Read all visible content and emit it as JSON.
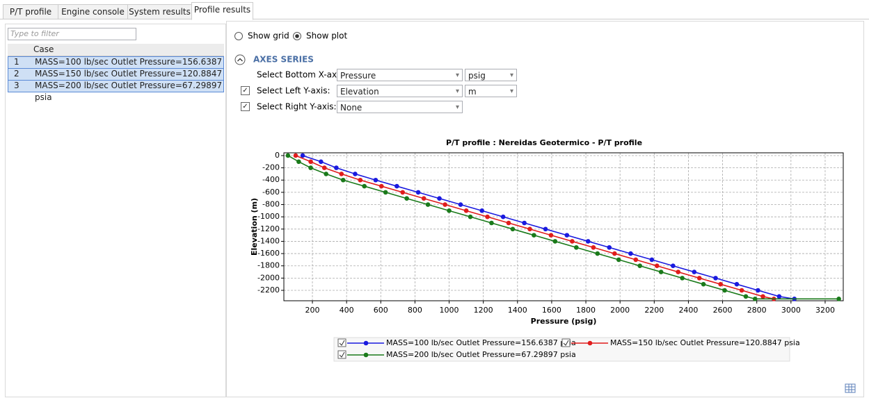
{
  "tabs": [
    "P/T profile",
    "Engine console",
    "System results",
    "Profile results"
  ],
  "filter_placeholder": "Type to filter",
  "case_table": {
    "header": "Case",
    "rows": [
      [
        1,
        "MASS=100 lb/sec Outlet Pressure=156.6387 psia"
      ],
      [
        2,
        "MASS=150 lb/sec Outlet Pressure=120.8847 psia"
      ],
      [
        3,
        "MASS=200 lb/sec Outlet Pressure=67.29897 psia"
      ]
    ]
  },
  "view_options": [
    "Show grid",
    "Show plot"
  ],
  "axes_series": {
    "title": "AXES SERIES",
    "rows": [
      {
        "label": "Select Bottom X-axis:",
        "value": "Pressure",
        "unit": "psig"
      },
      {
        "label": "Select Left Y-axis:",
        "value": "Elevation",
        "unit": "m"
      },
      {
        "label": "Select Right Y-axis:",
        "value": "None"
      }
    ]
  },
  "chart_data": {
    "type": "line",
    "title": "P/T profile : Nereidas Geotermico - P/T profile",
    "x_label": "Pressure (psig)",
    "y_label": "Elevation (m)",
    "xlim": [
      33,
      3306
    ],
    "ylim": [
      -2370,
      45
    ],
    "xticks": [
      200,
      400,
      600,
      800,
      1000,
      1200,
      1400,
      1600,
      1800,
      2000,
      2200,
      2400,
      2600,
      2800,
      3000,
      3200
    ],
    "yticks": [
      0,
      -200,
      -400,
      -600,
      -800,
      -1000,
      -1200,
      -1400,
      -1600,
      -1800,
      -2000,
      -2200
    ],
    "grid": true,
    "series": [
      {
        "name": "MASS=100 lb/sec Outlet Pressure=156.6387 psia",
        "color": "#1a1adf",
        "x": [
          143,
          250,
          340,
          450,
          570,
          694,
          819,
          943,
          1067,
          1192,
          1316,
          1440,
          1564,
          1689,
          1813,
          1937,
          2062,
          2186,
          2310,
          2434,
          2559,
          2683,
          2807,
          2931,
          3020
        ],
        "values": [
          0,
          -100,
          -200,
          -300,
          -400,
          -500,
          -600,
          -700,
          -800,
          -900,
          -1000,
          -1100,
          -1200,
          -1300,
          -1400,
          -1500,
          -1600,
          -1700,
          -1800,
          -1900,
          -2000,
          -2100,
          -2200,
          -2300,
          -2340
        ]
      },
      {
        "name": "MASS=150 lb/sec Outlet Pressure=120.8847 psia",
        "color": "#e01c1c",
        "x": [
          102,
          190,
          270,
          370,
          480,
          604,
          728,
          852,
          976,
          1100,
          1224,
          1348,
          1472,
          1596,
          1720,
          1844,
          1968,
          2092,
          2216,
          2340,
          2464,
          2588,
          2712,
          2836,
          2900
        ],
        "values": [
          0,
          -100,
          -200,
          -300,
          -400,
          -500,
          -600,
          -700,
          -800,
          -900,
          -1000,
          -1100,
          -1200,
          -1300,
          -1400,
          -1500,
          -1600,
          -1700,
          -1800,
          -1900,
          -2000,
          -2100,
          -2200,
          -2300,
          -2340
        ]
      },
      {
        "name": "MASS=200 lb/sec Outlet Pressure=67.29897 psia",
        "color": "#1a7a1a",
        "x": [
          57,
          120,
          190,
          280,
          380,
          504,
          628,
          752,
          876,
          1000,
          1124,
          1248,
          1372,
          1496,
          1620,
          1744,
          1868,
          1992,
          2116,
          2240,
          2364,
          2488,
          2612,
          2736,
          2790,
          3280
        ],
        "values": [
          0,
          -100,
          -200,
          -300,
          -400,
          -500,
          -600,
          -700,
          -800,
          -900,
          -1000,
          -1100,
          -1200,
          -1300,
          -1400,
          -1500,
          -1600,
          -1700,
          -1800,
          -1900,
          -2000,
          -2100,
          -2200,
          -2300,
          -2340,
          -2340
        ]
      }
    ]
  }
}
